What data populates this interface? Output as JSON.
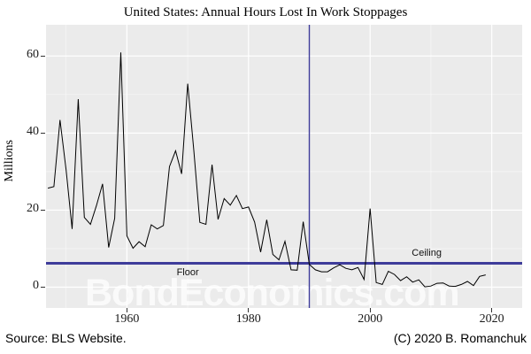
{
  "figure": {
    "title": "United States: Annual Hours Lost In Work Stoppages",
    "source_note": "Source: BLS Website.",
    "copyright_note": "(C) 2020 B. Romanchuk",
    "watermark": "BondEconomics.com"
  },
  "colors": {
    "panel_background": "#ebebeb",
    "grid_major": "#ffffff",
    "grid_minor": "#ffffff",
    "series_line": "#000000",
    "reference_line": "#3e3c9a",
    "text": "#000000"
  },
  "chart_data": {
    "type": "line",
    "title": "United States: Annual Hours Lost In Work Stoppages",
    "xlabel": "",
    "ylabel": "Millions",
    "x_ticks": [
      1960,
      1980,
      2000,
      2020
    ],
    "x_tick_labels": [
      "1960",
      "1980",
      "2000",
      "2020"
    ],
    "x_minor_ticks": [
      1950,
      1970,
      1990,
      2010
    ],
    "y_ticks": [
      0,
      20,
      40,
      60
    ],
    "y_tick_labels": [
      "0",
      "20",
      "40",
      "60"
    ],
    "y_minor_ticks": [
      10,
      30,
      50
    ],
    "xlim": [
      1946.7,
      2025.0
    ],
    "ylim": [
      -5.4,
      68.1
    ],
    "grid": "white major and minor gridlines on gray panel",
    "legend_position": "none",
    "series": [
      {
        "name": "Annual hours lost in work stoppages (millions)",
        "x": [
          1947,
          1948,
          1949,
          1950,
          1951,
          1952,
          1953,
          1954,
          1955,
          1956,
          1957,
          1958,
          1959,
          1960,
          1961,
          1962,
          1963,
          1964,
          1965,
          1966,
          1967,
          1968,
          1969,
          1970,
          1971,
          1972,
          1973,
          1974,
          1975,
          1976,
          1977,
          1978,
          1979,
          1980,
          1981,
          1982,
          1983,
          1984,
          1985,
          1986,
          1987,
          1988,
          1989,
          1990,
          1991,
          1992,
          1993,
          1994,
          1995,
          1996,
          1997,
          1998,
          1999,
          2000,
          2001,
          2002,
          2003,
          2004,
          2005,
          2006,
          2007,
          2008,
          2009,
          2010,
          2011,
          2012,
          2013,
          2014,
          2015,
          2016,
          2017,
          2018,
          2019
        ],
        "values": [
          25.7,
          26.1,
          43.4,
          30.4,
          15.1,
          48.8,
          18.1,
          16.3,
          21.2,
          26.8,
          10.3,
          17.9,
          60.9,
          13.3,
          10.1,
          11.8,
          10.5,
          16.2,
          15.1,
          16.0,
          31.3,
          35.4,
          29.4,
          52.8,
          35.5,
          16.8,
          16.3,
          31.8,
          17.6,
          23.0,
          21.3,
          23.8,
          20.4,
          20.8,
          16.9,
          9.1,
          17.5,
          8.5,
          7.1,
          11.9,
          4.5,
          4.4,
          17.0,
          5.9,
          4.5,
          4.0,
          4.0,
          5.0,
          5.8,
          4.9,
          4.5,
          5.1,
          2.0,
          20.4,
          1.2,
          0.7,
          4.1,
          3.3,
          1.7,
          2.7,
          1.3,
          1.9,
          0.1,
          0.3,
          1.0,
          1.1,
          0.3,
          0.2,
          0.7,
          1.5,
          0.4,
          2.8,
          3.2
        ]
      }
    ],
    "reference_lines": [
      {
        "orientation": "vertical",
        "x": 1990
      },
      {
        "orientation": "horizontal",
        "y": 6.2
      }
    ],
    "annotations": [
      {
        "text": "Floor",
        "x": 1970.0,
        "y": 3.7,
        "placement": "below horizontal reference line"
      },
      {
        "text": "Ceiling",
        "x": 2009.3,
        "y": 8.8,
        "placement": "above horizontal reference line"
      }
    ]
  }
}
